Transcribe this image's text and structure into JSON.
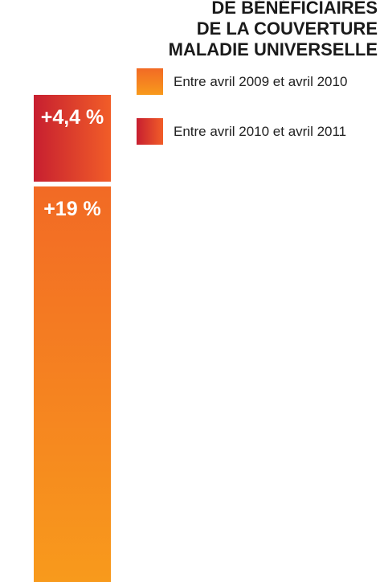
{
  "chart_data": {
    "type": "bar",
    "stacked": true,
    "title_lines": [
      "DE BÉNÉFICIAIRES",
      "DE LA COUVERTURE",
      "MALADIE UNIVERSELLE"
    ],
    "categories": [
      null
    ],
    "series": [
      {
        "name": "Entre avril 2009 et avril 2010",
        "color": "#f47f20",
        "values": [
          19
        ],
        "value_labels": [
          "+19 %"
        ]
      },
      {
        "name": "Entre avril 2010 et avril 2011",
        "color": "#e0392b",
        "values": [
          4.4
        ],
        "value_labels": [
          "+4,4 %"
        ]
      }
    ]
  }
}
